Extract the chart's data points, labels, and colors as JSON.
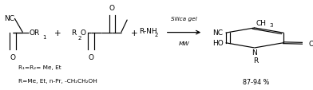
{
  "figsize": [
    3.92,
    1.14
  ],
  "dpi": 100,
  "background": "#ffffff",
  "arrow_text_top": "Silica gel",
  "arrow_text_bot": "MW",
  "yield_text": "87-94 %",
  "line1": "R₁=R₂= Me, Et",
  "line2": "R=Me, Et, n-Pr, -CH₂CH₂OH"
}
